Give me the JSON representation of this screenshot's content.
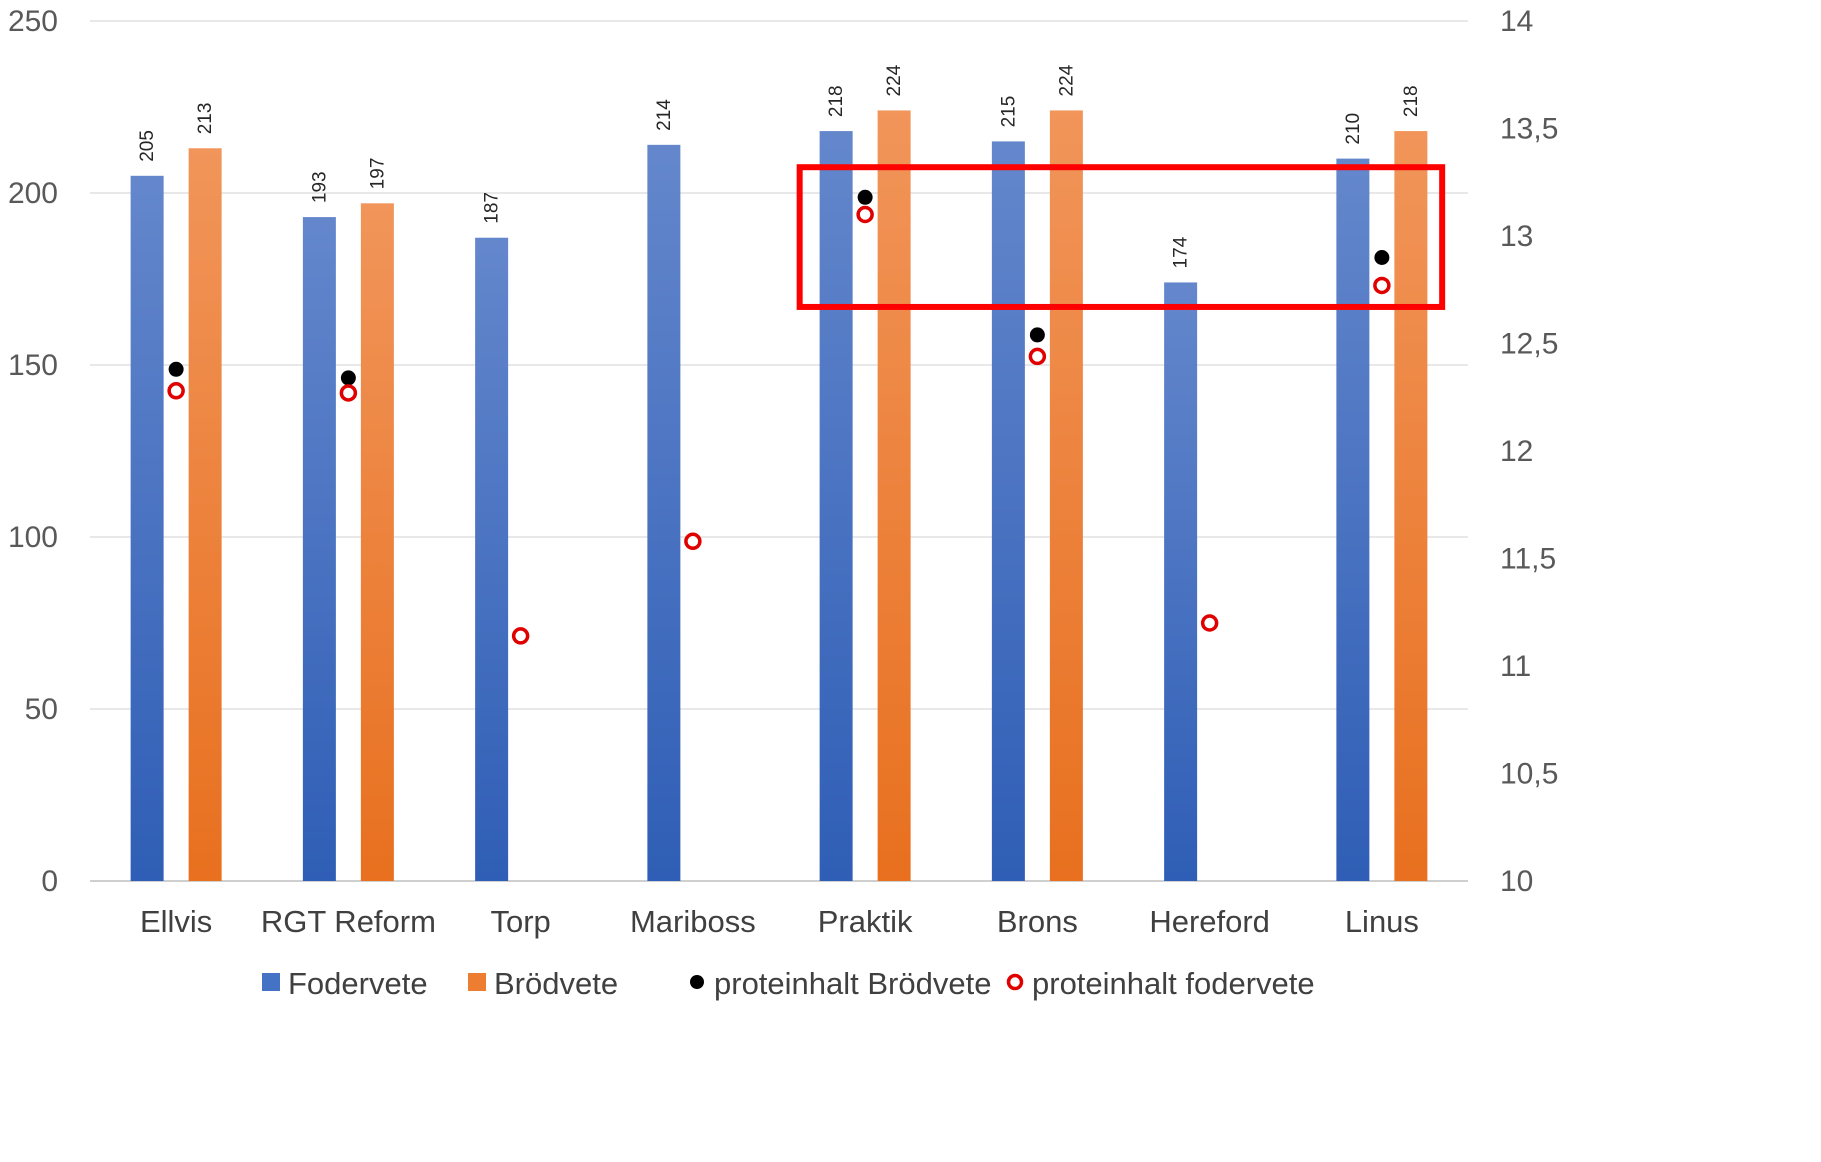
{
  "chart_data": {
    "type": "bar",
    "title": "",
    "categories": [
      "Ellvis",
      "RGT Reform",
      "Torp",
      "Mariboss",
      "Praktik",
      "Brons",
      "Hereford",
      "Linus"
    ],
    "series": [
      {
        "name": "Fodervete",
        "kind": "bar",
        "axis": "left",
        "color": "#4472C4",
        "values": [
          205,
          193,
          187,
          214,
          218,
          215,
          174,
          210
        ]
      },
      {
        "name": "Brödvete",
        "kind": "bar",
        "axis": "left",
        "color": "#ED7D31",
        "values": [
          213,
          197,
          null,
          null,
          224,
          224,
          null,
          218
        ]
      },
      {
        "name": "proteinhalt Brödvete",
        "kind": "point",
        "axis": "right",
        "color": "#000000",
        "marker": "filled-circle",
        "values": [
          12.38,
          12.34,
          null,
          null,
          13.18,
          12.54,
          null,
          12.9
        ]
      },
      {
        "name": "proteinhalt fodervete",
        "kind": "point",
        "axis": "right",
        "color": "#E00000",
        "marker": "open-circle",
        "values": [
          12.28,
          12.27,
          11.14,
          11.58,
          13.1,
          12.44,
          11.2,
          12.77
        ]
      }
    ],
    "y_left": {
      "min": 0,
      "max": 250,
      "ticks": [
        "0",
        "50",
        "100",
        "150",
        "200",
        "250"
      ]
    },
    "y_right": {
      "min": 10,
      "max": 14,
      "ticks": [
        "10",
        "10,5",
        "11",
        "11,5",
        "12",
        "12,5",
        "13",
        "13,5",
        "14"
      ]
    },
    "grid": true,
    "legend_position": "bottom",
    "highlight": {
      "shape": "rectangle",
      "color": "#FF0000",
      "x_from": "Praktik",
      "x_to": "Linus",
      "y_right_range": [
        12.67,
        13.32
      ]
    }
  }
}
